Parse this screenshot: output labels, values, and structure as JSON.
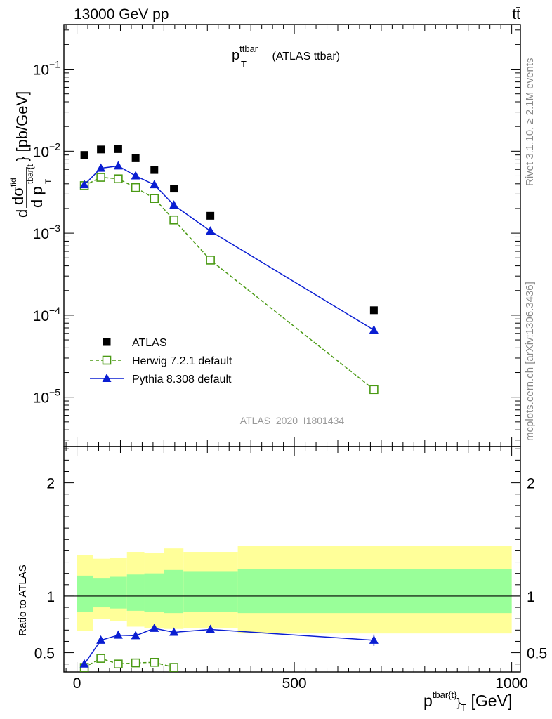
{
  "header": {
    "energy_label": "13000 GeV pp",
    "process_label": "tt̄"
  },
  "side_labels": {
    "rivet": "Rivet 3.1.10, ≥ 2.1M events",
    "mcplots": "mcplots.cern.ch [arXiv:1306.3436]"
  },
  "chart_data": [
    {
      "type": "scatter",
      "panel": "main",
      "title": {
        "main": "p",
        "sub": "T",
        "sup": "ttbar",
        "suffix": " (ATLAS ttbar)"
      },
      "ylabel": "d dσ^fid / d p_T^{tbar{t}} [pb/GeV]",
      "yscale": "log",
      "ylim": [
        2.5e-06,
        0.35
      ],
      "xlim": [
        -30,
        1020
      ],
      "ytick_labels": [
        {
          "base": "10",
          "exp": "−1",
          "value": 0.1
        },
        {
          "base": "10",
          "exp": "−2",
          "value": 0.01
        },
        {
          "base": "10",
          "exp": "−3",
          "value": 0.001
        },
        {
          "base": "10",
          "exp": "−4",
          "value": 0.0001
        },
        {
          "base": "10",
          "exp": "−5",
          "value": 1e-05
        }
      ],
      "watermark": "ATLAS_2020_I1801434",
      "legend_position": "lower-left",
      "series": [
        {
          "name": "ATLAS",
          "color": "#000000",
          "marker": "square",
          "x": [
            17,
            55,
            95,
            135,
            178,
            223,
            307,
            683
          ],
          "y": [
            0.009,
            0.0105,
            0.0106,
            0.0082,
            0.0059,
            0.0035,
            0.00163,
            0.000115
          ]
        },
        {
          "name": "Herwig 7.2.1 default",
          "color": "#4a9a14",
          "marker": "open-square",
          "line": "dashed",
          "x": [
            17,
            55,
            95,
            135,
            178,
            223,
            307,
            683
          ],
          "y": [
            0.0038,
            0.0048,
            0.0046,
            0.0036,
            0.00265,
            0.00145,
            0.00047,
            1.24e-05
          ]
        },
        {
          "name": "Pythia 8.308 default",
          "color": "#0a1ed2",
          "marker": "triangle",
          "line": "solid",
          "x": [
            17,
            55,
            95,
            135,
            178,
            223,
            307,
            683
          ],
          "y": [
            0.0039,
            0.0062,
            0.0066,
            0.005,
            0.0039,
            0.0022,
            0.00106,
            6.6e-05
          ]
        }
      ]
    },
    {
      "type": "scatter",
      "panel": "ratio",
      "ylabel": "Ratio to ATLAS",
      "xlabel": {
        "main": "p",
        "sup": "tbar{t}",
        "sub": "T",
        "suffix": " [GeV]",
        "brace": "}"
      },
      "ylim": [
        0.33,
        2.32
      ],
      "xlim": [
        -30,
        1020
      ],
      "yticks": [
        {
          "label": "0.5",
          "value": 0.5
        },
        {
          "label": "1",
          "value": 1
        },
        {
          "label": "2",
          "value": 2
        }
      ],
      "xticks": [
        {
          "label": "0",
          "value": 0
        },
        {
          "label": "500",
          "value": 500
        },
        {
          "label": "1000",
          "value": 1000
        }
      ],
      "bands": {
        "edges": [
          0,
          37,
          75,
          115,
          155,
          200,
          245,
          370,
          1000
        ],
        "inner": {
          "color": "#99ff99",
          "lo": [
            0.86,
            0.9,
            0.89,
            0.87,
            0.86,
            0.85,
            0.86,
            0.85
          ],
          "hi": [
            1.18,
            1.16,
            1.17,
            1.19,
            1.2,
            1.23,
            1.22,
            1.24
          ]
        },
        "outer": {
          "color": "#ffff99",
          "lo": [
            0.69,
            0.8,
            0.78,
            0.73,
            0.72,
            0.71,
            0.72,
            0.67
          ],
          "hi": [
            1.36,
            1.33,
            1.34,
            1.39,
            1.38,
            1.42,
            1.39,
            1.44
          ]
        }
      },
      "series": [
        {
          "name": "Herwig 7.2.1 default",
          "color": "#4a9a14",
          "marker": "open-square",
          "line": "dashed",
          "x": [
            17,
            55,
            95,
            135,
            178,
            223
          ],
          "y": [
            0.37,
            0.45,
            0.4,
            0.41,
            0.415,
            0.37
          ]
        },
        {
          "name": "Pythia 8.308 default",
          "color": "#0a1ed2",
          "marker": "triangle",
          "line": "solid",
          "x": [
            17,
            55,
            95,
            135,
            178,
            223,
            307,
            683
          ],
          "y": [
            0.4,
            0.61,
            0.655,
            0.65,
            0.715,
            0.68,
            0.705,
            0.61
          ],
          "err": [
            0.025,
            0.02,
            0.02,
            0.025,
            0.025,
            0.03,
            0.03,
            0.05
          ]
        }
      ]
    }
  ]
}
